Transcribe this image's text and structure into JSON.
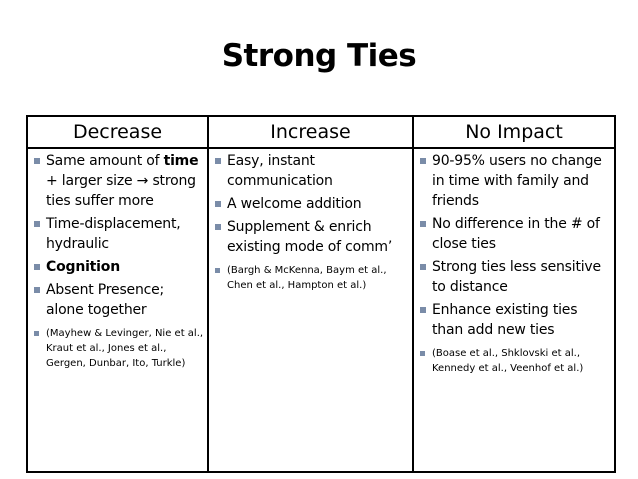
{
  "slide": {
    "title": "Strong Ties"
  },
  "table": {
    "columns": [
      {
        "header": "Decrease",
        "items": [
          {
            "parts": [
              {
                "text": "Same amount of ",
                "bold": false
              },
              {
                "text": "time",
                "bold": true
              },
              {
                "text": " + larger size → strong ties suffer more",
                "bold": false
              }
            ]
          },
          {
            "parts": [
              {
                "text": "Time-displacement, hydraulic",
                "bold": false
              }
            ]
          },
          {
            "parts": [
              {
                "text": "Cognition",
                "bold": true
              }
            ]
          },
          {
            "parts": [
              {
                "text": "Absent Presence; alone together",
                "bold": false
              }
            ]
          },
          {
            "small": true,
            "parts": [
              {
                "text": "(Mayhew & Levinger, Nie et al., Kraut et al., Jones et al., Gergen, Dunbar, Ito,  Turkle)",
                "bold": false
              }
            ]
          }
        ]
      },
      {
        "header": "Increase",
        "items": [
          {
            "parts": [
              {
                "text": "Easy, instant communication",
                "bold": false
              }
            ]
          },
          {
            "parts": [
              {
                "text": "A welcome addition",
                "bold": false
              }
            ]
          },
          {
            "parts": [
              {
                "text": "Supplement & enrich existing mode of comm’",
                "bold": false
              }
            ]
          },
          {
            "small": true,
            "parts": [
              {
                "text": "(Bargh & McKenna, Baym et al., Chen et al., Hampton et al.)",
                "bold": false
              }
            ]
          }
        ]
      },
      {
        "header": "No Impact",
        "items": [
          {
            "parts": [
              {
                "text": "90-95% users no change in time with family and friends",
                "bold": false
              }
            ]
          },
          {
            "parts": [
              {
                "text": "No difference in the # of close ties",
                "bold": false
              }
            ]
          },
          {
            "parts": [
              {
                "text": "Strong ties less sensitive to distance",
                "bold": false
              }
            ]
          },
          {
            "parts": [
              {
                "text": "Enhance existing ties than add new ties",
                "bold": false
              }
            ]
          },
          {
            "small": true,
            "parts": [
              {
                "text": "(Boase et al., Shklovski et al., Kennedy et al., Veenhof et al.)",
                "bold": false
              }
            ]
          }
        ]
      }
    ]
  },
  "colors": {
    "bullet": "#7a8ca8",
    "border": "#000000",
    "text": "#000000"
  }
}
